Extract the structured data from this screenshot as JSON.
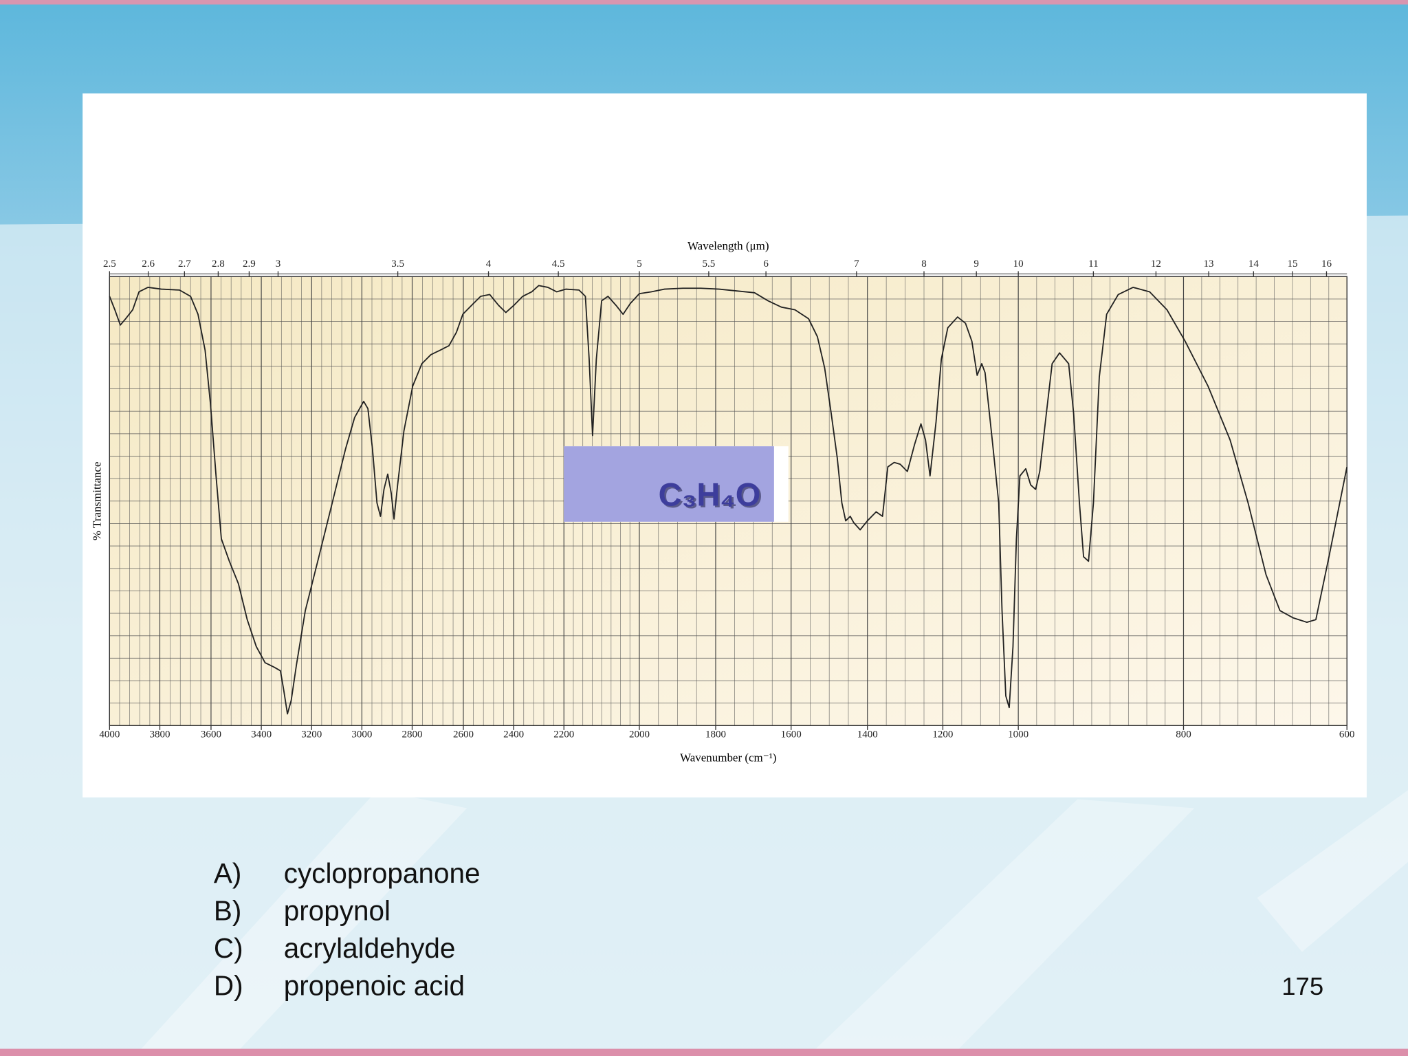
{
  "chart_data": {
    "type": "line",
    "x_label": "Wavenumber (cm⁻¹)",
    "y_label": "% Transmittance",
    "x2_label": "Wavelength (μm)",
    "annotation": "C₃H₄O",
    "color": "#222222",
    "grid": true,
    "xlim": [
      4000,
      600
    ],
    "ylim": [
      0,
      100
    ],
    "xticks": [
      4000,
      3800,
      3600,
      3400,
      3200,
      3000,
      2800,
      2600,
      2400,
      2200,
      2000,
      1800,
      1600,
      1400,
      1200,
      1000,
      800,
      600
    ],
    "x2ticks": [
      2.5,
      2.6,
      2.7,
      2.8,
      2.9,
      3,
      3.5,
      4,
      4.5,
      5,
      5.5,
      6,
      7,
      8,
      9,
      10,
      11,
      12,
      13,
      14,
      15,
      16
    ],
    "x": [
      4000,
      3979,
      3957,
      3936,
      3908,
      3883,
      3847,
      3794,
      3723,
      3680,
      3651,
      3623,
      3602,
      3580,
      3559,
      3527,
      3491,
      3456,
      3420,
      3385,
      3349,
      3324,
      3310,
      3296,
      3281,
      3260,
      3225,
      3171,
      3118,
      3065,
      3029,
      2993,
      2976,
      2958,
      2940,
      2926,
      2912,
      2897,
      2883,
      2872,
      2858,
      2833,
      2798,
      2762,
      2727,
      2691,
      2656,
      2627,
      2602,
      2567,
      2531,
      2495,
      2460,
      2431,
      2399,
      2364,
      2328,
      2300,
      2264,
      2229,
      2195,
      2160,
      2143,
      2133,
      2124,
      2114,
      2100,
      2083,
      2062,
      2043,
      2024,
      2000,
      1969,
      1934,
      1886,
      1839,
      1791,
      1744,
      1697,
      1661,
      1626,
      1590,
      1554,
      1531,
      1512,
      1495,
      1479,
      1467,
      1457,
      1445,
      1436,
      1419,
      1400,
      1377,
      1360,
      1346,
      1329,
      1313,
      1294,
      1275,
      1258,
      1246,
      1234,
      1218,
      1204,
      1187,
      1161,
      1140,
      1123,
      1109,
      1097,
      1088,
      1069,
      1052,
      1043,
      1033,
      1024,
      1014,
      1005,
      998,
      991,
      985,
      979,
      974,
      966,
      959,
      950,
      939,
      933,
      926,
      921,
      915,
      909,
      902,
      893,
      879,
      861,
      841,
      820,
      798,
      770,
      743,
      721,
      699,
      682,
      666,
      649,
      638,
      622,
      611,
      600
    ],
    "values": [
      95.6,
      92.6,
      89.2,
      90.6,
      92.6,
      96.6,
      97.6,
      97.2,
      97.0,
      95.6,
      91.6,
      83.6,
      71.6,
      55.6,
      41.6,
      36.6,
      31.6,
      23.6,
      17.6,
      14.0,
      13.0,
      12.2,
      7.6,
      2.6,
      5.6,
      13.6,
      25.6,
      37.6,
      49.6,
      61.6,
      68.6,
      72.2,
      70.6,
      61.6,
      49.6,
      46.6,
      52.6,
      56.0,
      51.6,
      46.0,
      53.6,
      65.6,
      75.6,
      80.6,
      82.6,
      83.6,
      84.6,
      87.6,
      91.6,
      93.6,
      95.6,
      96.0,
      93.6,
      92.0,
      93.6,
      95.6,
      96.6,
      98.0,
      97.6,
      96.6,
      97.2,
      97.0,
      95.6,
      81.6,
      64.6,
      81.6,
      94.6,
      95.6,
      93.6,
      91.6,
      94.0,
      96.2,
      96.6,
      97.2,
      97.4,
      97.4,
      97.2,
      96.8,
      96.4,
      94.6,
      93.2,
      92.6,
      90.6,
      86.6,
      79.6,
      69.6,
      59.6,
      49.6,
      45.6,
      46.6,
      45.2,
      43.6,
      45.6,
      47.6,
      46.6,
      57.6,
      58.6,
      58.2,
      56.6,
      62.6,
      67.2,
      63.6,
      55.6,
      67.6,
      81.6,
      88.6,
      91.0,
      89.6,
      85.6,
      78.0,
      80.6,
      78.6,
      63.6,
      49.6,
      25.6,
      6.6,
      4.0,
      17.6,
      41.6,
      55.6,
      57.2,
      53.6,
      52.6,
      56.6,
      69.6,
      80.6,
      83.0,
      80.6,
      69.6,
      49.6,
      37.6,
      36.6,
      49.6,
      77.6,
      91.6,
      96.0,
      97.6,
      96.6,
      92.6,
      85.6,
      75.6,
      63.6,
      49.6,
      33.6,
      25.6,
      24.0,
      23.0,
      23.6,
      37.6,
      47.6,
      57.6
    ]
  },
  "options": [
    {
      "letter": "A)",
      "text": "cyclopropanone"
    },
    {
      "letter": "B)",
      "text": "propynol"
    },
    {
      "letter": "C)",
      "text": "acrylaldehyde"
    },
    {
      "letter": "D)",
      "text": "propenoic acid"
    }
  ],
  "page_number": "175"
}
